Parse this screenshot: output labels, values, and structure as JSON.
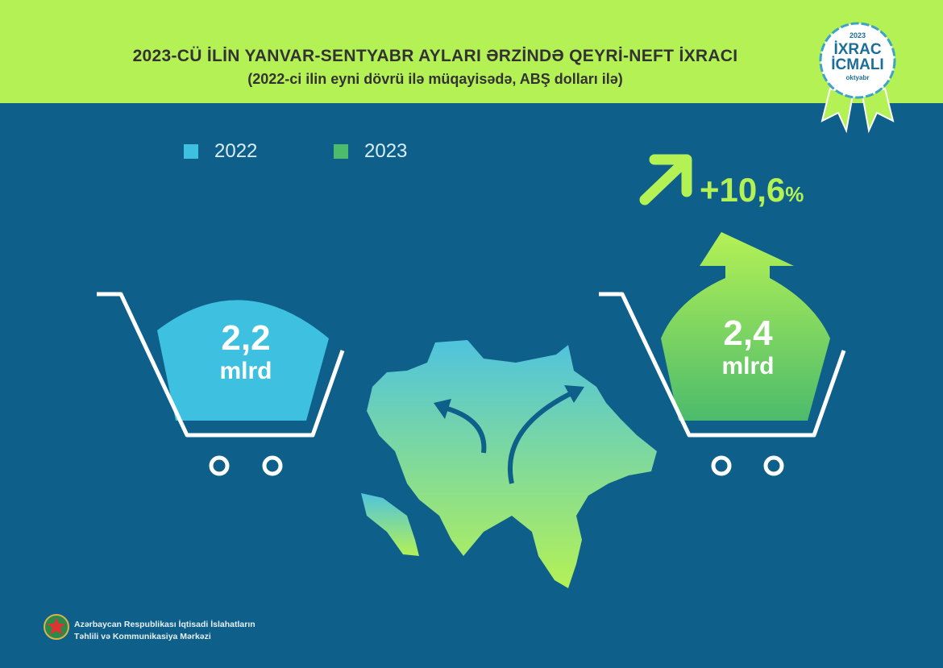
{
  "header": {
    "title": "2023-CÜ İLİN YANVAR-SENTYABR AYLARI ƏRZİNDƏ QEYRİ-NEFT İXRACI",
    "subtitle": "(2022-ci ilin eyni dövrü ilə müqayisədə, ABŞ dolları ilə)"
  },
  "badge": {
    "year": "2023",
    "line1": "İXRAC",
    "line2": "İCMALI",
    "month": "oktyabr"
  },
  "legend": [
    {
      "label": "2022",
      "color": "#3ec1e0"
    },
    {
      "label": "2023",
      "color": "#4cbb6c"
    }
  ],
  "growth": {
    "value": "+10,6",
    "unit": "%",
    "icon": "arrow-up-right-icon"
  },
  "carts": [
    {
      "value": "2,2",
      "unit": "mlrd",
      "color": "#3ec1e0"
    },
    {
      "value": "2,4",
      "unit": "mlrd",
      "color": "#4cbb6c"
    }
  ],
  "footer": {
    "line1": "Azərbaycan Respublikası İqtisadi İslahatların",
    "line2": "Təhlili və Kommunikasiya Mərkəzi"
  },
  "chart_data": {
    "type": "bar",
    "title": "2023-CÜ İLİN YANVAR-SENTYABR AYLARI ƏRZİNDƏ QEYRİ-NEFT İXRACI",
    "subtitle": "(2022-ci ilin eyni dövrü ilə müqayisədə, ABŞ dolları ilə)",
    "categories": [
      "2022",
      "2023"
    ],
    "values": [
      2.2,
      2.4
    ],
    "unit": "mlrd",
    "change": "+10,6%",
    "legend_position": "top-left"
  }
}
